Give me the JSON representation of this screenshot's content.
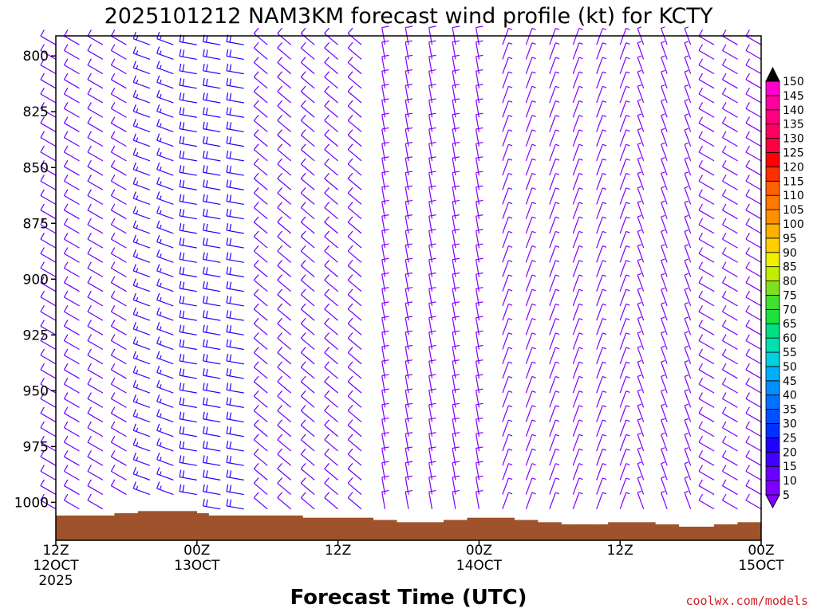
{
  "chart_data": {
    "type": "wind-barb-time-height",
    "title": "2025101212 NAM3KM forecast wind profile (kt) for KCTY",
    "xlabel": "Forecast Time (UTC)",
    "credit": "coolwx.com/models",
    "units": "kt",
    "pressure_levels_hpa": [
      800,
      825,
      850,
      875,
      900,
      925,
      950,
      975,
      1000
    ],
    "y_range_hpa": [
      791,
      1017
    ],
    "x_range_hours": [
      0,
      60
    ],
    "x_ticks": [
      {
        "hour": 0,
        "label": "12Z",
        "sublabel": "12OCT",
        "year": "2025"
      },
      {
        "hour": 12,
        "label": "00Z",
        "sublabel": "13OCT"
      },
      {
        "hour": 24,
        "label": "12Z",
        "sublabel": ""
      },
      {
        "hour": 36,
        "label": "00Z",
        "sublabel": "14OCT"
      },
      {
        "hour": 48,
        "label": "12Z",
        "sublabel": ""
      },
      {
        "hour": 60,
        "label": "00Z",
        "sublabel": "15OCT"
      }
    ],
    "colorbar": {
      "ticks": [
        5,
        10,
        15,
        20,
        25,
        30,
        35,
        40,
        45,
        50,
        55,
        60,
        65,
        70,
        75,
        80,
        85,
        90,
        95,
        100,
        105,
        110,
        115,
        120,
        125,
        130,
        135,
        140,
        145,
        150
      ],
      "colors": [
        "#8000ff",
        "#6a00ff",
        "#4000ff",
        "#2000ff",
        "#0030ff",
        "#0050ff",
        "#0070ff",
        "#0090ff",
        "#00b0ff",
        "#00d0e0",
        "#00e0b0",
        "#00e080",
        "#20e040",
        "#40e030",
        "#80e020",
        "#c0f000",
        "#f0f000",
        "#ffd000",
        "#ffb000",
        "#ff9000",
        "#ff7800",
        "#ff6000",
        "#ff3000",
        "#ff0000",
        "#ff0040",
        "#ff0060",
        "#ff0080",
        "#ff00a0",
        "#ff00d0",
        "#ff40ff"
      ]
    },
    "surface_pressure_hpa": [
      1006,
      1006,
      1006,
      1006,
      1006,
      1005,
      1005,
      1004,
      1004,
      1004,
      1004,
      1004,
      1005,
      1006,
      1006,
      1006,
      1006,
      1006,
      1006,
      1006,
      1006,
      1007,
      1007,
      1007,
      1007,
      1007,
      1007,
      1008,
      1008,
      1009,
      1009,
      1009,
      1009,
      1008,
      1008,
      1007,
      1007,
      1007,
      1007,
      1008,
      1008,
      1009,
      1009,
      1010,
      1010,
      1010,
      1010,
      1009,
      1009,
      1009,
      1009,
      1010,
      1010,
      1011,
      1011,
      1011,
      1010,
      1010,
      1009,
      1009,
      1010
    ],
    "barb_columns_hours": [
      0,
      2,
      4,
      6,
      8,
      10,
      12,
      14,
      16,
      18,
      20,
      22,
      24,
      26,
      28,
      30,
      32,
      34,
      36,
      38,
      40,
      42,
      44,
      46,
      48,
      50,
      52,
      54,
      56,
      58,
      60
    ],
    "wind_segments": [
      {
        "t0": 0,
        "t1": 6,
        "dir": 300,
        "speed": 12
      },
      {
        "t0": 6,
        "t1": 11,
        "dir": 290,
        "speed": 16
      },
      {
        "t0": 11,
        "t1": 17,
        "dir": 280,
        "speed": 22
      },
      {
        "t0": 17,
        "t1": 27,
        "dir": 310,
        "speed": 10
      },
      {
        "t0": 27,
        "t1": 37,
        "dir": 350,
        "speed": 8
      },
      {
        "t0": 37,
        "t1": 49,
        "dir": 20,
        "speed": 6
      },
      {
        "t0": 49,
        "t1": 55,
        "dir": 340,
        "speed": 5
      },
      {
        "t0": 55,
        "t1": 60,
        "dir": 300,
        "speed": 8
      }
    ]
  }
}
